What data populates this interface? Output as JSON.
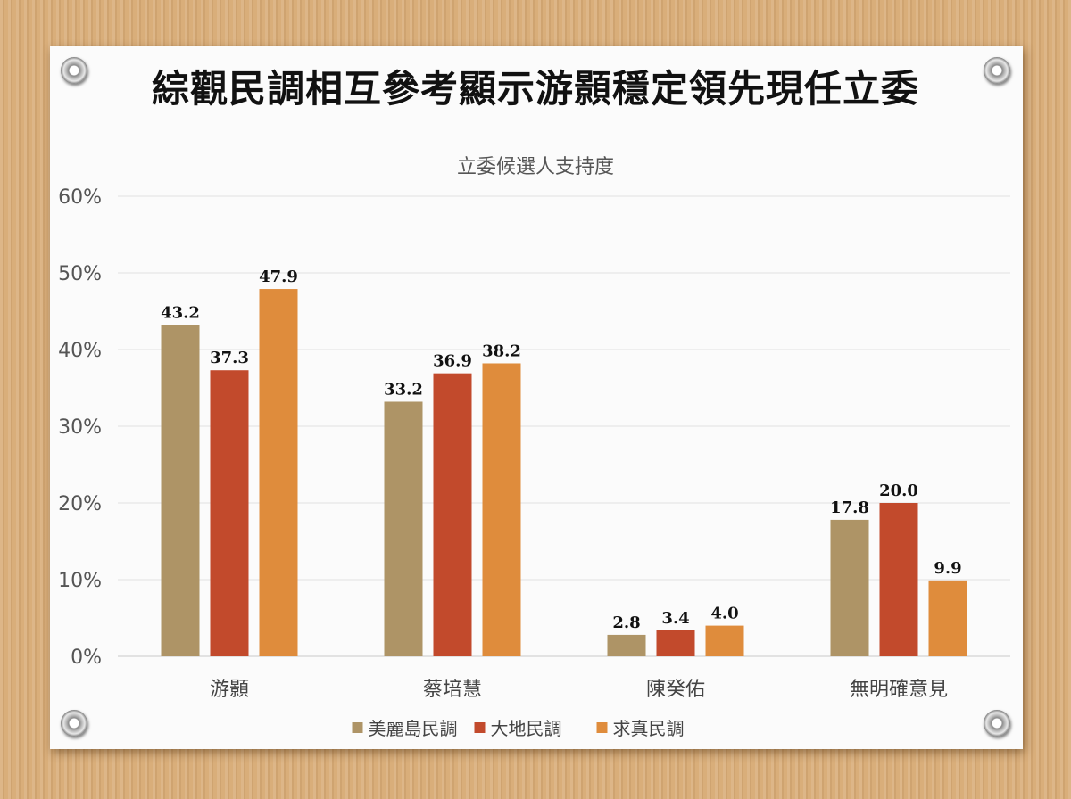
{
  "headline": "綜觀民調相互參考顯示游顥穩定領先現任立委",
  "chart_data": {
    "type": "bar",
    "title": "立委候選人支持度",
    "categories": [
      "游顥",
      "蔡培慧",
      "陳癸佑",
      "無明確意見"
    ],
    "series": [
      {
        "name": "美麗島民調",
        "values": [
          43.2,
          33.2,
          2.8,
          17.8
        ],
        "color": "#ae9466"
      },
      {
        "name": "大地民調",
        "values": [
          37.3,
          36.9,
          3.4,
          20.0
        ],
        "color": "#c24a2c"
      },
      {
        "name": "求真民調",
        "values": [
          47.9,
          38.2,
          4.0,
          9.9
        ],
        "color": "#df8c3c"
      }
    ],
    "ylim": [
      0,
      60
    ],
    "yticks": [
      "0%",
      "10%",
      "20%",
      "30%",
      "40%",
      "50%",
      "60%"
    ],
    "grid": true,
    "legend": "bottom"
  }
}
